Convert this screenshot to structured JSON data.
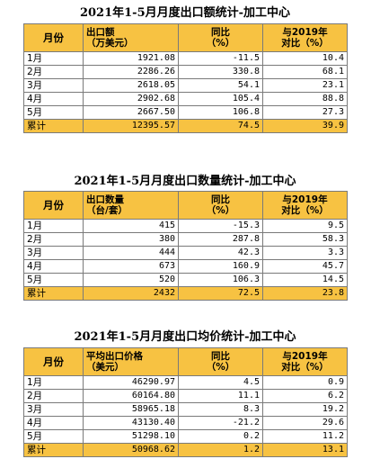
{
  "tables": [
    {
      "title": "2021年1-5月月度出口额统计-加工中心",
      "headers": {
        "month": "月份",
        "col2_l1": "出口额",
        "col2_l2": "（万美元）",
        "col3_l1": "同比",
        "col3_l2": "（%）",
        "col4_l1": "与2019年",
        "col4_l2": "对比（%）"
      },
      "rows": [
        [
          "1月",
          "1921.08",
          "-11.5",
          "10.4"
        ],
        [
          "2月",
          "2286.26",
          "330.8",
          "68.1"
        ],
        [
          "3月",
          "2618.05",
          "54.1",
          "23.1"
        ],
        [
          "4月",
          "2902.68",
          "105.4",
          "88.8"
        ],
        [
          "5月",
          "2667.50",
          "106.8",
          "27.3"
        ]
      ],
      "total": [
        "累计",
        "12395.57",
        "74.5",
        "39.9"
      ]
    },
    {
      "title": "2021年1-5月月度出口数量统计-加工中心",
      "headers": {
        "month": "月份",
        "col2_l1": "出口数量",
        "col2_l2": "（台/套）",
        "col3_l1": "同比",
        "col3_l2": "（%）",
        "col4_l1": "与2019年",
        "col4_l2": "对比（%）"
      },
      "rows": [
        [
          "1月",
          "415",
          "-15.3",
          "9.5"
        ],
        [
          "2月",
          "380",
          "287.8",
          "58.3"
        ],
        [
          "3月",
          "444",
          "42.3",
          "3.3"
        ],
        [
          "4月",
          "673",
          "160.9",
          "45.7"
        ],
        [
          "5月",
          "520",
          "106.3",
          "14.5"
        ]
      ],
      "total": [
        "累计",
        "2432",
        "72.5",
        "23.8"
      ]
    },
    {
      "title": "2021年1-5月月度出口均价统计-加工中心",
      "headers": {
        "month": "月份",
        "col2_l1": "平均出口价格",
        "col2_l2": "（美元）",
        "col3_l1": "同比",
        "col3_l2": "（%）",
        "col4_l1": "与2019年",
        "col4_l2": "对比（%）"
      },
      "rows": [
        [
          "1月",
          "46290.97",
          "4.5",
          "0.9"
        ],
        [
          "2月",
          "60164.80",
          "11.1",
          "6.2"
        ],
        [
          "3月",
          "58965.18",
          "8.3",
          "19.2"
        ],
        [
          "4月",
          "43130.40",
          "-21.2",
          "29.6"
        ],
        [
          "5月",
          "51298.10",
          "0.2",
          "11.2"
        ]
      ],
      "total": [
        "累计",
        "50968.62",
        "1.2",
        "13.1"
      ]
    }
  ]
}
